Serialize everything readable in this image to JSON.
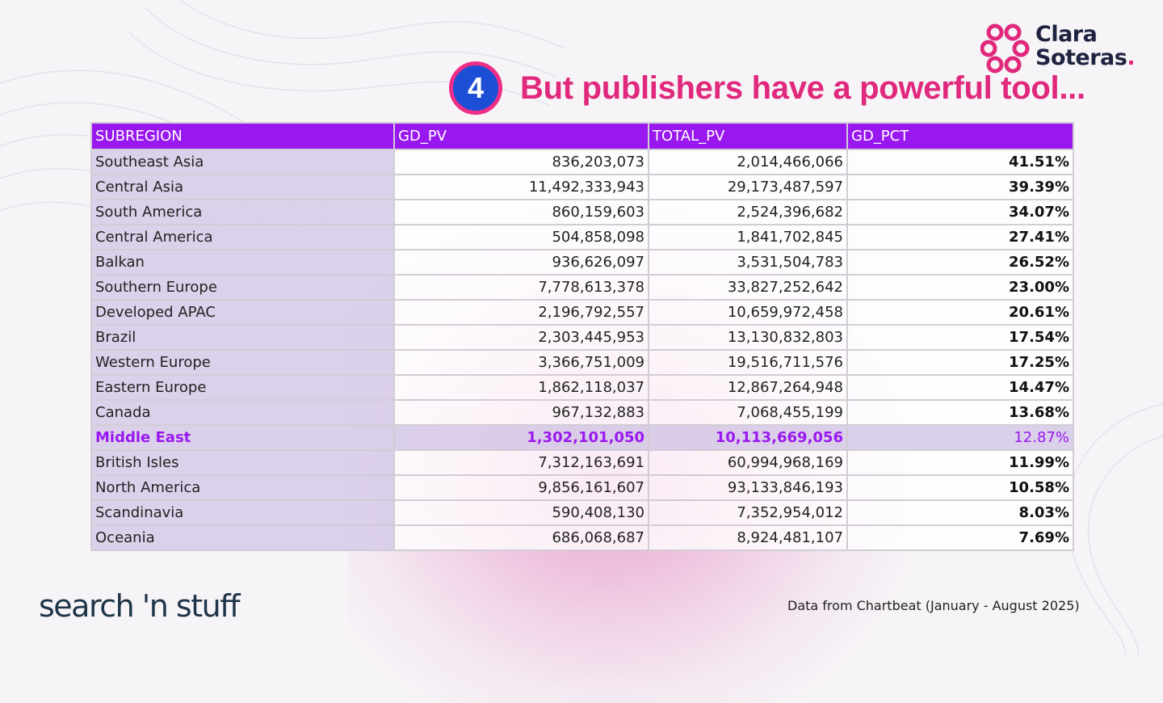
{
  "logo": {
    "line1": "Clara",
    "line2": "Soteras",
    "dot": "."
  },
  "title": {
    "step": "4",
    "text": "But publishers have a powerful tool..."
  },
  "table": {
    "headers": [
      "SUBREGION",
      "GD_PV",
      "TOTAL_PV",
      "GD_PCT"
    ],
    "rows": [
      {
        "region": "Southeast Asia",
        "gd_pv": "836,203,073",
        "total_pv": "2,014,466,066",
        "gd_pct": "41.51%"
      },
      {
        "region": "Central Asia",
        "gd_pv": "11,492,333,943",
        "total_pv": "29,173,487,597",
        "gd_pct": "39.39%"
      },
      {
        "region": "South America",
        "gd_pv": "860,159,603",
        "total_pv": "2,524,396,682",
        "gd_pct": "34.07%"
      },
      {
        "region": "Central America",
        "gd_pv": "504,858,098",
        "total_pv": "1,841,702,845",
        "gd_pct": "27.41%"
      },
      {
        "region": "Balkan",
        "gd_pv": "936,626,097",
        "total_pv": "3,531,504,783",
        "gd_pct": "26.52%"
      },
      {
        "region": "Southern Europe",
        "gd_pv": "7,778,613,378",
        "total_pv": "33,827,252,642",
        "gd_pct": "23.00%"
      },
      {
        "region": "Developed APAC",
        "gd_pv": "2,196,792,557",
        "total_pv": "10,659,972,458",
        "gd_pct": "20.61%"
      },
      {
        "region": "Brazil",
        "gd_pv": "2,303,445,953",
        "total_pv": "13,130,832,803",
        "gd_pct": "17.54%"
      },
      {
        "region": "Western Europe",
        "gd_pv": "3,366,751,009",
        "total_pv": "19,516,711,576",
        "gd_pct": "17.25%"
      },
      {
        "region": "Eastern Europe",
        "gd_pv": "1,862,118,037",
        "total_pv": "12,867,264,948",
        "gd_pct": "14.47%"
      },
      {
        "region": "Canada",
        "gd_pv": "967,132,883",
        "total_pv": "7,068,455,199",
        "gd_pct": "13.68%"
      },
      {
        "region": "Middle East",
        "gd_pv": "1,302,101,050",
        "total_pv": "10,113,669,056",
        "gd_pct": "12.87%",
        "highlight": true
      },
      {
        "region": "British Isles",
        "gd_pv": "7,312,163,691",
        "total_pv": "60,994,968,169",
        "gd_pct": "11.99%"
      },
      {
        "region": "North America",
        "gd_pv": "9,856,161,607",
        "total_pv": "93,133,846,193",
        "gd_pct": "10.58%"
      },
      {
        "region": "Scandinavia",
        "gd_pv": "590,408,130",
        "total_pv": "7,352,954,012",
        "gd_pct": "8.03%"
      },
      {
        "region": "Oceania",
        "gd_pv": "686,068,687",
        "total_pv": "8,924,481,107",
        "gd_pct": "7.69%"
      }
    ]
  },
  "footer": {
    "brand": "search 'n stuff",
    "source": "Data from Chartbeat (January - August 2025)"
  },
  "colors": {
    "accent_pink": "#e0287c",
    "header_purple": "#9a18f0",
    "badge_blue": "#1c4fd6"
  }
}
